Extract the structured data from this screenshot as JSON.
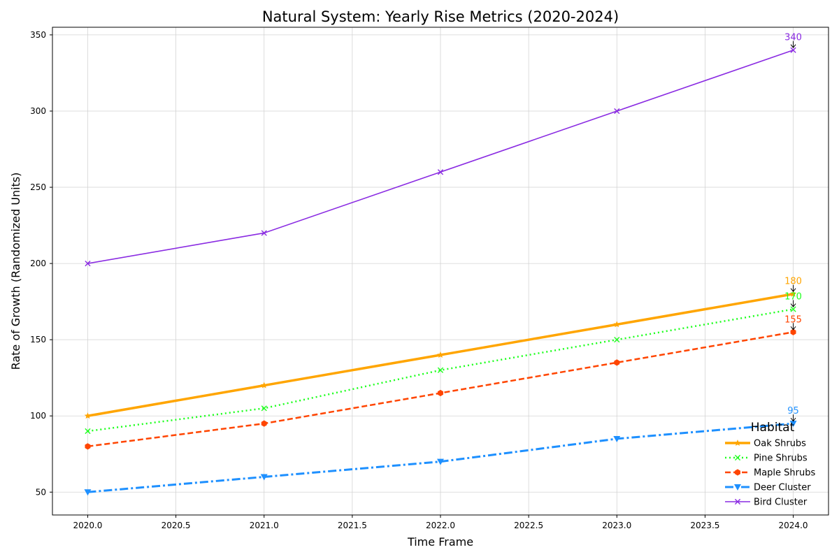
{
  "chart_data": {
    "type": "line",
    "title": "Natural System: Yearly Rise Metrics (2020-2024)",
    "xlabel": "Time Frame",
    "ylabel": "Rate of Growth (Randomized Units)",
    "x": [
      2020,
      2021,
      2022,
      2023,
      2024
    ],
    "xlim": [
      2019.8,
      2024.2
    ],
    "ylim": [
      35,
      355
    ],
    "xticks": [
      2020.0,
      2020.5,
      2021.0,
      2021.5,
      2022.0,
      2022.5,
      2023.0,
      2023.5,
      2024.0
    ],
    "xtick_labels": [
      "2020.0",
      "2020.5",
      "2021.0",
      "2021.5",
      "2022.0",
      "2022.5",
      "2023.0",
      "2023.5",
      "2024.0"
    ],
    "yticks": [
      50,
      100,
      150,
      200,
      250,
      300,
      350
    ],
    "ytick_labels": [
      "50",
      "100",
      "150",
      "200",
      "250",
      "300",
      "350"
    ],
    "grid": true,
    "legend_title": "Habitat",
    "legend_position": "lower-right",
    "series": [
      {
        "name": "Oak Shrubs",
        "values": [
          100,
          120,
          140,
          160,
          180
        ],
        "color": "#FFA500",
        "dash": "solid",
        "marker": "star",
        "width": 3.5
      },
      {
        "name": "Pine Shrubs",
        "values": [
          90,
          105,
          130,
          150,
          170
        ],
        "color": "#1EFF1E",
        "dash": "dotted",
        "marker": "x",
        "width": 2.5
      },
      {
        "name": "Maple Shrubs",
        "values": [
          80,
          95,
          115,
          135,
          155
        ],
        "color": "#FF4500",
        "dash": "dashed",
        "marker": "hexagon",
        "width": 2.5
      },
      {
        "name": "Deer Cluster",
        "values": [
          50,
          60,
          70,
          85,
          95
        ],
        "color": "#1E90FF",
        "dash": "dashdot",
        "marker": "triangle-down",
        "width": 3
      },
      {
        "name": "Bird Cluster",
        "values": [
          200,
          220,
          260,
          300,
          340
        ],
        "color": "#8A2BE2",
        "dash": "solid",
        "marker": "x",
        "width": 1.6
      }
    ],
    "annotations": [
      {
        "series": "Oak Shrubs",
        "text": "180"
      },
      {
        "series": "Pine Shrubs",
        "text": "170"
      },
      {
        "series": "Maple Shrubs",
        "text": "155"
      },
      {
        "series": "Deer Cluster",
        "text": "95"
      },
      {
        "series": "Bird Cluster",
        "text": "340"
      }
    ]
  }
}
